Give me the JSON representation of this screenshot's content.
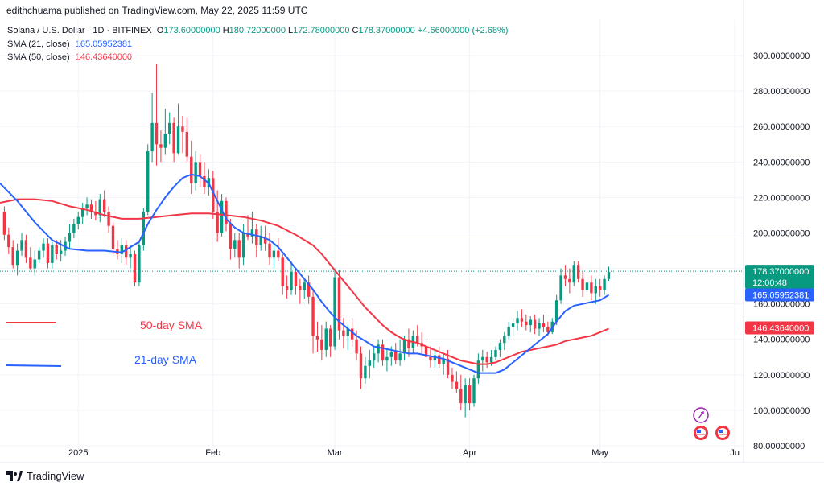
{
  "header": {
    "publisher_line": "edithchuama published on TradingView.com, May 22, 2025 11:59 UTC"
  },
  "legend": {
    "symbol": "Solana / U.S. Dollar · 1D · BITFINEX",
    "ohlc": [
      {
        "k": "O",
        "v": "173.60000000"
      },
      {
        "k": "H",
        "v": "180.72000000"
      },
      {
        "k": "L",
        "v": "172.78000000"
      },
      {
        "k": "C",
        "v": "178.37000000"
      }
    ],
    "change": "+4.66000000 (+2.68%)",
    "sma21": {
      "label": "SMA (21, close)",
      "value": "165.05952381"
    },
    "sma50": {
      "label": "SMA (50, close)",
      "value": "146.43640000"
    }
  },
  "footer": {
    "brand": "TradingView"
  },
  "colors": {
    "up": "#089981",
    "down": "#f23645",
    "sma21": "#2962ff",
    "sma50": "#f23645",
    "grid": "#f0f3fa",
    "text": "#131722"
  },
  "chart_data": {
    "type": "candlestick",
    "ylim": [
      75,
      320
    ],
    "xlim": [
      -18,
      153
    ],
    "y_ticks": [
      300,
      280,
      260,
      240,
      220,
      200,
      180,
      160,
      140,
      120,
      100,
      80
    ],
    "y_tick_labels": [
      "300.00000000",
      "280.00000000",
      "260.00000000",
      "240.00000000",
      "220.00000000",
      "200.00000000",
      "180.00000000",
      "160.00000000",
      "140.00000000",
      "120.00000000",
      "100.00000000",
      "80.00000000"
    ],
    "x_ticks": [
      {
        "day": 0,
        "label": "2025"
      },
      {
        "day": 31,
        "label": "Feb"
      },
      {
        "day": 59,
        "label": "Mar"
      },
      {
        "day": 90,
        "label": "Apr"
      },
      {
        "day": 120,
        "label": "May"
      },
      {
        "day": 151,
        "label": "Ju"
      }
    ],
    "grid": true,
    "price_line": 178.37,
    "axis_badges": [
      {
        "lines": [
          "178.37000000",
          "12:00:48"
        ],
        "value": 178.37,
        "color": "#089981"
      },
      {
        "lines": [
          "165.05952381"
        ],
        "value": 165.06,
        "color": "#2962ff"
      },
      {
        "lines": [
          "146.43640000"
        ],
        "value": 146.44,
        "color": "#f23645"
      }
    ],
    "annotations": [
      {
        "text": "50-day SMA",
        "color": "#f23645",
        "day": 14,
        "value": 143
      },
      {
        "text": "21-day SMA",
        "color": "#2962ff",
        "day": 14,
        "value": 121
      }
    ],
    "candles": [
      [
        -17,
        212,
        215,
        196,
        199
      ],
      [
        -16,
        199,
        203,
        188,
        192
      ],
      [
        -15,
        192,
        196,
        180,
        182
      ],
      [
        -14,
        182,
        194,
        176,
        190
      ],
      [
        -13,
        190,
        200,
        187,
        196
      ],
      [
        -12,
        196,
        199,
        183,
        186
      ],
      [
        -11,
        186,
        192,
        179,
        180
      ],
      [
        -10,
        180,
        190,
        176,
        185
      ],
      [
        -9,
        185,
        192,
        183,
        190
      ],
      [
        -8,
        190,
        197,
        186,
        194
      ],
      [
        -7,
        194,
        197,
        180,
        183
      ],
      [
        -6,
        183,
        195,
        180,
        193
      ],
      [
        -5,
        193,
        196,
        185,
        188
      ],
      [
        -4,
        188,
        196,
        184,
        190
      ],
      [
        -3,
        190,
        198,
        187,
        195
      ],
      [
        -2,
        195,
        205,
        191,
        200
      ],
      [
        -1,
        200,
        208,
        197,
        205
      ],
      [
        0,
        205,
        212,
        202,
        209
      ],
      [
        1,
        209,
        217,
        205,
        214
      ],
      [
        2,
        214,
        220,
        210,
        216
      ],
      [
        3,
        216,
        219,
        208,
        212
      ],
      [
        4,
        212,
        218,
        207,
        210
      ],
      [
        5,
        210,
        222,
        206,
        219
      ],
      [
        6,
        219,
        224,
        209,
        212
      ],
      [
        7,
        212,
        215,
        200,
        204
      ],
      [
        8,
        204,
        206,
        188,
        191
      ],
      [
        9,
        191,
        196,
        185,
        188
      ],
      [
        10,
        188,
        197,
        183,
        193
      ],
      [
        11,
        193,
        196,
        182,
        186
      ],
      [
        12,
        186,
        193,
        180,
        188
      ],
      [
        13,
        188,
        190,
        170,
        172
      ],
      [
        14,
        172,
        195,
        170,
        193
      ],
      [
        15,
        193,
        214,
        190,
        212
      ],
      [
        16,
        212,
        250,
        210,
        246
      ],
      [
        17,
        246,
        279,
        240,
        262
      ],
      [
        18,
        262,
        295,
        238,
        250
      ],
      [
        19,
        250,
        258,
        240,
        248
      ],
      [
        20,
        248,
        270,
        244,
        256
      ],
      [
        21,
        256,
        268,
        250,
        262
      ],
      [
        22,
        262,
        265,
        240,
        245
      ],
      [
        23,
        245,
        273,
        244,
        260
      ],
      [
        24,
        260,
        266,
        245,
        257
      ],
      [
        25,
        257,
        265,
        240,
        243
      ],
      [
        26,
        243,
        252,
        222,
        228
      ],
      [
        27,
        228,
        246,
        224,
        240
      ],
      [
        28,
        240,
        244,
        226,
        232
      ],
      [
        29,
        232,
        240,
        222,
        226
      ],
      [
        30,
        226,
        236,
        221,
        231
      ],
      [
        31,
        231,
        235,
        208,
        212
      ],
      [
        32,
        212,
        224,
        195,
        200
      ],
      [
        33,
        200,
        222,
        198,
        218
      ],
      [
        34,
        218,
        220,
        201,
        205
      ],
      [
        35,
        205,
        208,
        185,
        191
      ],
      [
        36,
        191,
        200,
        186,
        196
      ],
      [
        37,
        196,
        200,
        180,
        186
      ],
      [
        38,
        186,
        205,
        182,
        200
      ],
      [
        39,
        200,
        210,
        196,
        198
      ],
      [
        40,
        198,
        212,
        194,
        202
      ],
      [
        41,
        202,
        205,
        186,
        193
      ],
      [
        42,
        193,
        204,
        190,
        198
      ],
      [
        43,
        198,
        204,
        190,
        194
      ],
      [
        44,
        194,
        200,
        182,
        186
      ],
      [
        45,
        186,
        194,
        180,
        190
      ],
      [
        46,
        190,
        197,
        184,
        186
      ],
      [
        47,
        186,
        188,
        165,
        170
      ],
      [
        48,
        170,
        176,
        163,
        168
      ],
      [
        49,
        168,
        184,
        165,
        178
      ],
      [
        50,
        178,
        180,
        165,
        170
      ],
      [
        51,
        170,
        174,
        160,
        168
      ],
      [
        52,
        168,
        174,
        163,
        172
      ],
      [
        53,
        172,
        176,
        160,
        164
      ],
      [
        54,
        164,
        168,
        132,
        142
      ],
      [
        55,
        142,
        150,
        133,
        140
      ],
      [
        56,
        140,
        148,
        128,
        134
      ],
      [
        57,
        134,
        150,
        130,
        146
      ],
      [
        58,
        146,
        148,
        130,
        136
      ],
      [
        59,
        136,
        180,
        134,
        175
      ],
      [
        60,
        175,
        179,
        140,
        145
      ],
      [
        61,
        145,
        152,
        135,
        142
      ],
      [
        62,
        142,
        148,
        134,
        146
      ],
      [
        63,
        146,
        152,
        136,
        140
      ],
      [
        64,
        140,
        145,
        128,
        132
      ],
      [
        65,
        132,
        136,
        112,
        118
      ],
      [
        66,
        118,
        130,
        115,
        125
      ],
      [
        67,
        125,
        134,
        118,
        128
      ],
      [
        68,
        128,
        136,
        124,
        132
      ],
      [
        69,
        132,
        140,
        127,
        137
      ],
      [
        70,
        137,
        140,
        125,
        128
      ],
      [
        71,
        128,
        135,
        122,
        130
      ],
      [
        72,
        130,
        136,
        125,
        133
      ],
      [
        73,
        133,
        138,
        126,
        128
      ],
      [
        74,
        128,
        140,
        125,
        132
      ],
      [
        75,
        132,
        142,
        128,
        140
      ],
      [
        76,
        140,
        146,
        130,
        135
      ],
      [
        77,
        135,
        145,
        132,
        142
      ],
      [
        78,
        142,
        148,
        136,
        138
      ],
      [
        79,
        138,
        144,
        132,
        136
      ],
      [
        80,
        136,
        142,
        128,
        130
      ],
      [
        81,
        130,
        136,
        124,
        128
      ],
      [
        82,
        128,
        134,
        124,
        131
      ],
      [
        83,
        131,
        136,
        124,
        126
      ],
      [
        84,
        126,
        132,
        120,
        129
      ],
      [
        85,
        129,
        134,
        118,
        120
      ],
      [
        86,
        120,
        124,
        112,
        116
      ],
      [
        87,
        116,
        122,
        110,
        112
      ],
      [
        88,
        112,
        120,
        100,
        104
      ],
      [
        89,
        104,
        118,
        96,
        114
      ],
      [
        90,
        114,
        118,
        100,
        104
      ],
      [
        91,
        104,
        120,
        102,
        118
      ],
      [
        92,
        118,
        132,
        115,
        128
      ],
      [
        93,
        128,
        134,
        122,
        130
      ],
      [
        94,
        130,
        133,
        124,
        127
      ],
      [
        95,
        127,
        134,
        125,
        130
      ],
      [
        96,
        130,
        136,
        128,
        134
      ],
      [
        97,
        134,
        140,
        130,
        138
      ],
      [
        98,
        138,
        144,
        134,
        142
      ],
      [
        99,
        142,
        150,
        140,
        147
      ],
      [
        100,
        147,
        152,
        142,
        149
      ],
      [
        101,
        149,
        156,
        145,
        152
      ],
      [
        102,
        152,
        157,
        147,
        150
      ],
      [
        103,
        150,
        154,
        145,
        148
      ],
      [
        104,
        148,
        153,
        144,
        151
      ],
      [
        105,
        151,
        154,
        143,
        146
      ],
      [
        106,
        146,
        152,
        142,
        149
      ],
      [
        107,
        149,
        154,
        144,
        147
      ],
      [
        108,
        147,
        150,
        142,
        144
      ],
      [
        109,
        144,
        152,
        143,
        150
      ],
      [
        110,
        150,
        165,
        148,
        162
      ],
      [
        111,
        162,
        180,
        160,
        176
      ],
      [
        112,
        176,
        182,
        170,
        174
      ],
      [
        113,
        174,
        180,
        166,
        172
      ],
      [
        114,
        172,
        184,
        170,
        182
      ],
      [
        115,
        182,
        184,
        172,
        174
      ],
      [
        116,
        174,
        178,
        164,
        168
      ],
      [
        117,
        168,
        174,
        165,
        172
      ],
      [
        118,
        172,
        176,
        162,
        166
      ],
      [
        119,
        166,
        174,
        160,
        170
      ],
      [
        120,
        170,
        174,
        164,
        168
      ],
      [
        121,
        168,
        176,
        165,
        174
      ],
      [
        122,
        174,
        181,
        173,
        178
      ]
    ],
    "sma21": [
      [
        -18,
        228
      ],
      [
        -14,
        218
      ],
      [
        -10,
        206
      ],
      [
        -6,
        196
      ],
      [
        -2,
        191
      ],
      [
        2,
        190
      ],
      [
        6,
        190
      ],
      [
        10,
        189
      ],
      [
        14,
        195
      ],
      [
        16,
        205
      ],
      [
        18,
        213
      ],
      [
        20,
        220
      ],
      [
        22,
        226
      ],
      [
        24,
        231
      ],
      [
        26,
        233
      ],
      [
        28,
        232
      ],
      [
        30,
        228
      ],
      [
        32,
        218
      ],
      [
        34,
        208
      ],
      [
        36,
        203
      ],
      [
        38,
        200
      ],
      [
        40,
        199
      ],
      [
        42,
        198
      ],
      [
        44,
        196
      ],
      [
        46,
        192
      ],
      [
        48,
        186
      ],
      [
        50,
        180
      ],
      [
        52,
        174
      ],
      [
        54,
        168
      ],
      [
        56,
        161
      ],
      [
        58,
        155
      ],
      [
        60,
        150
      ],
      [
        62,
        146
      ],
      [
        64,
        142
      ],
      [
        66,
        139
      ],
      [
        68,
        136
      ],
      [
        70,
        135
      ],
      [
        72,
        134
      ],
      [
        74,
        133
      ],
      [
        76,
        132
      ],
      [
        78,
        132
      ],
      [
        80,
        131
      ],
      [
        82,
        130
      ],
      [
        84,
        129
      ],
      [
        86,
        127
      ],
      [
        88,
        125
      ],
      [
        90,
        123
      ],
      [
        92,
        121
      ],
      [
        94,
        121
      ],
      [
        96,
        121
      ],
      [
        98,
        123
      ],
      [
        100,
        127
      ],
      [
        102,
        131
      ],
      [
        104,
        135
      ],
      [
        106,
        139
      ],
      [
        108,
        143
      ],
      [
        110,
        150
      ],
      [
        112,
        156
      ],
      [
        114,
        159
      ],
      [
        116,
        160
      ],
      [
        118,
        161
      ],
      [
        120,
        162
      ],
      [
        122,
        165
      ]
    ],
    "sma50": [
      [
        -18,
        217
      ],
      [
        -14,
        219
      ],
      [
        -10,
        219
      ],
      [
        -6,
        218
      ],
      [
        -2,
        215
      ],
      [
        2,
        213
      ],
      [
        6,
        210
      ],
      [
        10,
        208
      ],
      [
        14,
        208
      ],
      [
        18,
        209
      ],
      [
        22,
        210
      ],
      [
        26,
        211
      ],
      [
        30,
        211
      ],
      [
        34,
        210
      ],
      [
        38,
        209
      ],
      [
        42,
        207
      ],
      [
        46,
        204
      ],
      [
        50,
        199
      ],
      [
        54,
        193
      ],
      [
        56,
        188
      ],
      [
        58,
        182
      ],
      [
        60,
        176
      ],
      [
        62,
        170
      ],
      [
        64,
        164
      ],
      [
        66,
        158
      ],
      [
        68,
        153
      ],
      [
        70,
        148
      ],
      [
        72,
        144
      ],
      [
        74,
        141
      ],
      [
        76,
        139
      ],
      [
        78,
        138
      ],
      [
        80,
        136
      ],
      [
        82,
        134
      ],
      [
        84,
        132
      ],
      [
        86,
        130
      ],
      [
        88,
        128
      ],
      [
        90,
        127
      ],
      [
        92,
        126
      ],
      [
        94,
        126
      ],
      [
        96,
        127
      ],
      [
        98,
        129
      ],
      [
        100,
        131
      ],
      [
        102,
        133
      ],
      [
        104,
        134
      ],
      [
        106,
        135
      ],
      [
        108,
        136
      ],
      [
        110,
        137
      ],
      [
        112,
        139
      ],
      [
        114,
        140
      ],
      [
        116,
        141
      ],
      [
        118,
        142
      ],
      [
        120,
        144
      ],
      [
        122,
        146
      ]
    ]
  }
}
